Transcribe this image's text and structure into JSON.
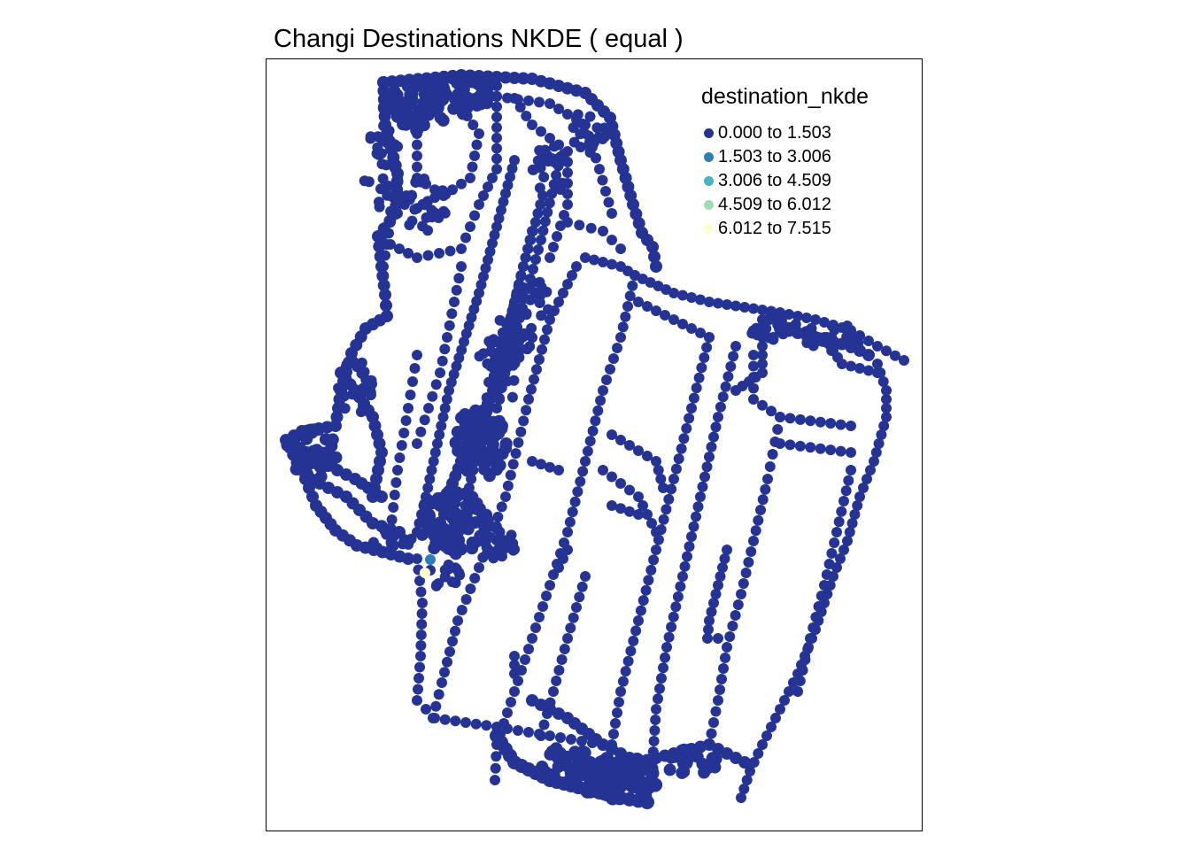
{
  "map": {
    "title": "Changi Destinations NKDE ( equal )",
    "legend": {
      "title": "destination_nkde",
      "items": [
        {
          "label": "0.000 to 1.503",
          "color": "#253494"
        },
        {
          "label": "1.503 to 3.006",
          "color": "#2c7fb8"
        },
        {
          "label": "3.006 to 4.509",
          "color": "#41b6c4"
        },
        {
          "label": "4.509 to 6.012",
          "color": "#a1dab4"
        },
        {
          "label": "6.012 to 7.515",
          "color": "#ffffcc"
        }
      ]
    },
    "colors": {
      "network": "#253494",
      "highlight_mid": "#2c7fb8",
      "highlight_high": "#ffffcc",
      "frame": "#000000"
    }
  }
}
